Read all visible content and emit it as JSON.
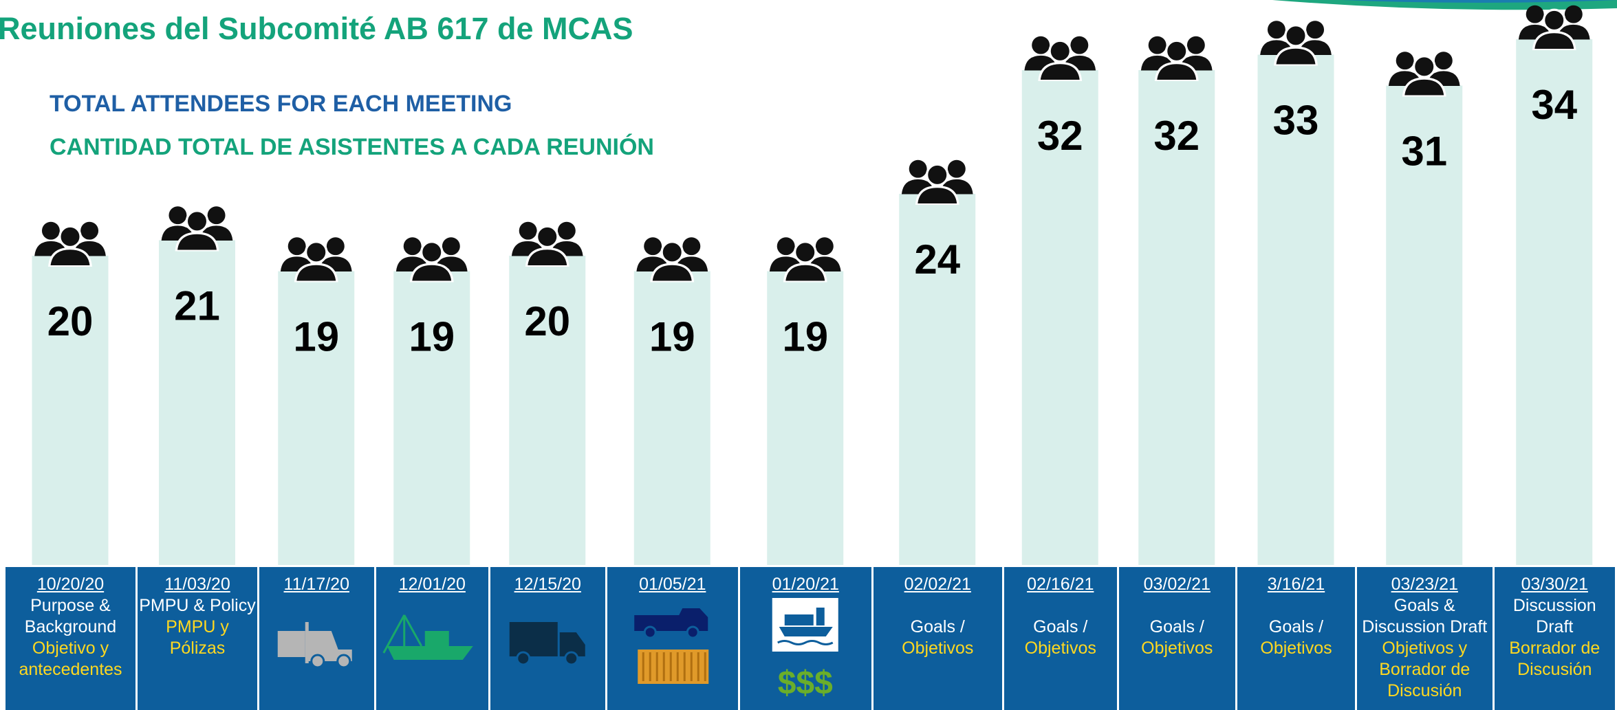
{
  "chart_data": {
    "type": "bar",
    "title": "Reuniones del Subcomité AB 617 de MCAS",
    "subtitle": "TOTAL ATTENDEES FOR EACH MEETING",
    "subtitle_es": "CANTIDAD TOTAL DE ASISTENTES A CADA REUNIÓN",
    "categories": [
      "10/20/20",
      "11/03/20",
      "11/17/20",
      "12/01/20",
      "12/15/20",
      "01/05/21",
      "01/20/21",
      "02/02/21",
      "02/16/21",
      "03/02/21",
      "3/16/21",
      "03/23/21",
      "03/30/21"
    ],
    "topics_en": [
      "Purpose & Background",
      "PMPU & Policy",
      null,
      null,
      null,
      null,
      null,
      "Goals /",
      "Goals /",
      "Goals /",
      "Goals /",
      "Goals & Discussion Draft",
      "Discussion Draft"
    ],
    "topics_es": [
      "Objetivo y antecedentes",
      "PMPU y Pólizas",
      null,
      null,
      null,
      null,
      null,
      "Objetivos",
      "Objetivos",
      "Objetivos",
      "Objetivos",
      "Objetivos y Borrador de Discusión",
      "Borrador de Discusión"
    ],
    "values": [
      20,
      21,
      19,
      19,
      20,
      19,
      19,
      24,
      32,
      32,
      33,
      31,
      34
    ],
    "color": "#d9efeb",
    "cost_label": "$$$"
  }
}
